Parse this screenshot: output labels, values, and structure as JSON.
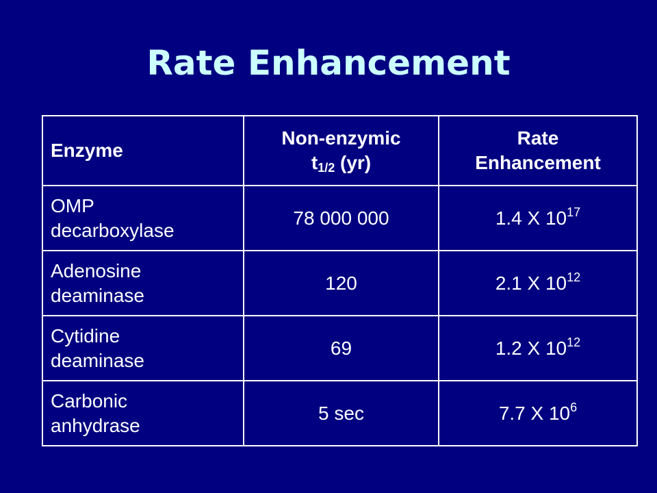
{
  "title": "Rate Enhancement",
  "table": {
    "headers": {
      "enzyme": "Enzyme",
      "nonenzymic_line1": "Non-enzymic",
      "nonenzymic_t": "t",
      "nonenzymic_sub": "1/2",
      "nonenzymic_unit": " (yr)",
      "rate_line1": "Rate",
      "rate_line2": "Enhancement"
    },
    "rows": [
      {
        "name_line1": "OMP",
        "name_line2": "decarboxylase",
        "half_life": "78 000 000",
        "rate_base": "1.4 X 10",
        "rate_exp": "17"
      },
      {
        "name_line1": "Adenosine",
        "name_line2": "deaminase",
        "half_life": "120",
        "rate_base": "2.1 X 10",
        "rate_exp": "12"
      },
      {
        "name_line1": "Cytidine",
        "name_line2": "deaminase",
        "half_life": "69",
        "rate_base": "1.2 X 10",
        "rate_exp": "12"
      },
      {
        "name_line1": "Carbonic",
        "name_line2": "anhydrase",
        "half_life": "5 sec",
        "rate_base": "7.7 X 10",
        "rate_exp": "6"
      }
    ]
  }
}
